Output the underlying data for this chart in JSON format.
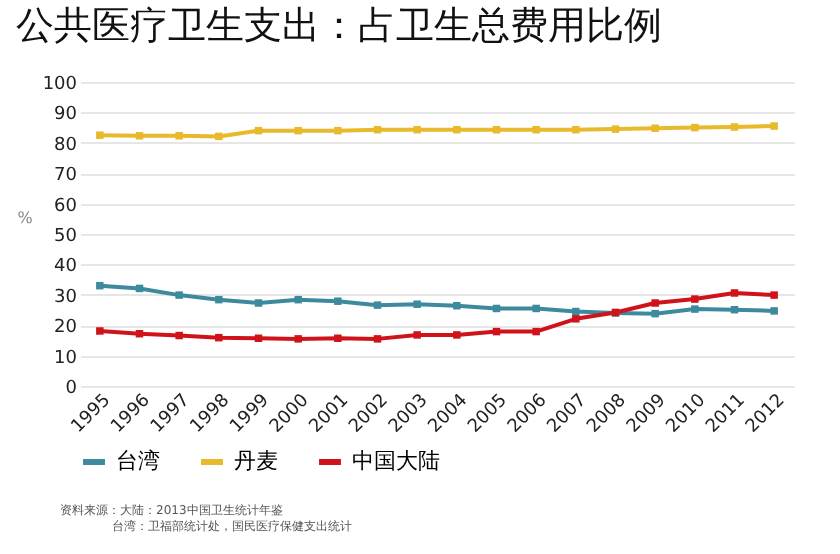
{
  "chart_data": {
    "type": "line",
    "title": "公共医疗卫生支出：占卫生总费用比例",
    "ylabel": "%",
    "categories": [
      "1995",
      "1996",
      "1997",
      "1998",
      "1999",
      "2000",
      "2001",
      "2002",
      "2003",
      "2004",
      "2005",
      "2006",
      "2007",
      "2008",
      "2009",
      "2010",
      "2011",
      "2012"
    ],
    "series": [
      {
        "name": "台湾",
        "color": "#3d8a9e",
        "values": [
          33,
          32.1,
          29.9,
          28.4,
          27.3,
          28.4,
          27.9,
          26.6,
          26.9,
          26.4,
          25.5,
          25.5,
          24.5,
          24,
          23.8,
          25.3,
          25.1,
          24.7
        ]
      },
      {
        "name": "丹麦",
        "color": "#e8b92a",
        "values": [
          82.5,
          82.3,
          82.3,
          82.1,
          84,
          84,
          84,
          84.3,
          84.3,
          84.3,
          84.3,
          84.3,
          84.3,
          84.5,
          84.8,
          85,
          85.2,
          85.5
        ]
      },
      {
        "name": "中国大陆",
        "color": "#d0121b",
        "values": [
          18.1,
          17.2,
          16.6,
          15.9,
          15.7,
          15.5,
          15.7,
          15.5,
          16.8,
          16.8,
          17.9,
          17.9,
          22.1,
          24.2,
          27.3,
          28.6,
          30.6,
          29.9
        ]
      }
    ],
    "ylim": [
      0,
      100
    ],
    "yticks": [
      0,
      10,
      20,
      30,
      40,
      50,
      60,
      70,
      80,
      90,
      100
    ],
    "grid": "y",
    "legend": "bottom",
    "marker": "square",
    "line_style": "solid",
    "annotations": [
      "资料来源：大陆：2013中国卫生统计年鉴",
      "台湾：卫福部统计处，国民医疗保健支出统计"
    ]
  }
}
